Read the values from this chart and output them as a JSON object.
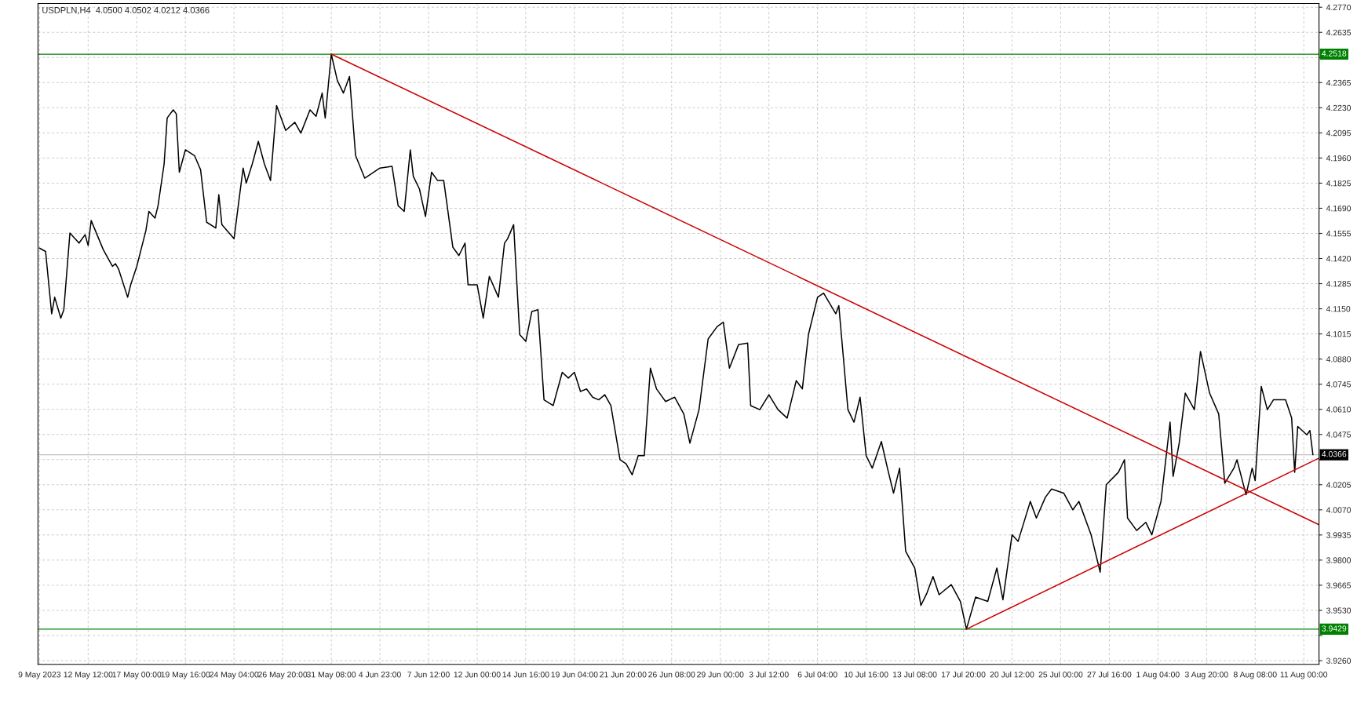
{
  "chart_data": {
    "type": "line",
    "title": "USDPLN,H4  4.0500 4.0502 4.0212 4.0366",
    "categories": [
      "9 May 2023",
      null,
      null,
      null,
      null,
      null,
      null,
      null,
      null,
      null,
      null,
      null,
      null,
      null,
      null,
      null,
      "12 May 12:00",
      null,
      null,
      null,
      null,
      null,
      null,
      null,
      null,
      null,
      null,
      null,
      null,
      null,
      null,
      null,
      "17 May 00:00",
      null,
      null,
      null,
      null,
      null,
      null,
      null,
      null,
      null,
      null,
      null,
      null,
      null,
      null,
      null,
      "19 May 16:00",
      null,
      null,
      null,
      null,
      null,
      null,
      null,
      null,
      null,
      null,
      null,
      null,
      null,
      null,
      null,
      "24 May 04:00",
      null,
      null,
      null,
      null,
      null,
      null,
      null,
      null,
      null,
      null,
      null,
      null,
      null,
      null,
      null,
      "26 May 20:00",
      null,
      null,
      null,
      null,
      null,
      null,
      null,
      null,
      null,
      null,
      null,
      null,
      null,
      null,
      null,
      "31 May 08:00",
      null,
      null,
      null,
      null,
      null,
      null,
      null,
      null,
      null,
      null,
      null,
      null,
      null,
      null,
      null,
      "4 Jun 23:00",
      null,
      null,
      null,
      null,
      null,
      null,
      null,
      null,
      null,
      null,
      null,
      null,
      null,
      null,
      null,
      "7 Jun 12:00",
      null,
      null,
      null,
      null,
      null,
      null,
      null,
      null,
      null,
      null,
      null,
      null,
      null,
      null,
      null,
      "12 Jun 00:00",
      null,
      null,
      null,
      null,
      null,
      null,
      null,
      null,
      null,
      null,
      null,
      null,
      null,
      null,
      null,
      "14 Jun 16:00",
      null,
      null,
      null,
      null,
      null,
      null,
      null,
      null,
      null,
      null,
      null,
      null,
      null,
      null,
      null,
      "19 Jun 04:00",
      null,
      null,
      null,
      null,
      null,
      null,
      null,
      null,
      null,
      null,
      null,
      null,
      null,
      null,
      null,
      "21 Jun 20:00",
      null,
      null,
      null,
      null,
      null,
      null,
      null,
      null,
      null,
      null,
      null,
      null,
      null,
      null,
      null,
      "26 Jun 08:00",
      null,
      null,
      null,
      null,
      null,
      null,
      null,
      null,
      null,
      null,
      null,
      null,
      null,
      null,
      null,
      "29 Jun 00:00",
      null,
      null,
      null,
      null,
      null,
      null,
      null,
      null,
      null,
      null,
      null,
      null,
      null,
      null,
      null,
      "3 Jul 12:00",
      null,
      null,
      null,
      null,
      null,
      null,
      null,
      null,
      null,
      null,
      null,
      null,
      null,
      null,
      null,
      "6 Jul 04:00",
      null,
      null,
      null,
      null,
      null,
      null,
      null,
      null,
      null,
      null,
      null,
      null,
      null,
      null,
      null,
      "10 Jul 16:00",
      null,
      null,
      null,
      null,
      null,
      null,
      null,
      null,
      null,
      null,
      null,
      null,
      null,
      null,
      null,
      "13 Jul 08:00",
      null,
      null,
      null,
      null,
      null,
      null,
      null,
      null,
      null,
      null,
      null,
      null,
      null,
      null,
      null,
      "17 Jul 20:00",
      null,
      null,
      null,
      null,
      null,
      null,
      null,
      null,
      null,
      null,
      null,
      null,
      null,
      null,
      null,
      "20 Jul 12:00",
      null,
      null,
      null,
      null,
      null,
      null,
      null,
      null,
      null,
      null,
      null,
      null,
      null,
      null,
      null,
      "25 Jul 00:00",
      null,
      null,
      null,
      null,
      null,
      null,
      null,
      null,
      null,
      null,
      null,
      null,
      null,
      null,
      null,
      "27 Jul 16:00",
      null,
      null,
      null,
      null,
      null,
      null,
      null,
      null,
      null,
      null,
      null,
      null,
      null,
      null,
      null,
      "1 Aug 04:00",
      null,
      null,
      null,
      null,
      null,
      null,
      null,
      null,
      null,
      null,
      null,
      null,
      null,
      null,
      null,
      "3 Aug 20:00",
      null,
      null,
      null,
      null,
      null,
      null,
      null,
      null,
      null,
      null,
      null,
      null,
      null,
      null,
      null,
      "8 Aug 08:00",
      null,
      null,
      null,
      null,
      null,
      null,
      null,
      null,
      null,
      null,
      null,
      null,
      null,
      null,
      null,
      "11 Aug 00:00",
      null,
      null,
      null,
      null,
      null
    ],
    "ylim": [
      3.924,
      4.279
    ],
    "yticks": [
      {
        "value": 3.926,
        "label": "3.9260"
      },
      {
        "value": 3.9395,
        "label": null
      },
      {
        "value": 3.953,
        "label": "3.9530"
      },
      {
        "value": 3.9665,
        "label": "3.9665"
      },
      {
        "value": 3.98,
        "label": "3.9800"
      },
      {
        "value": 3.9935,
        "label": "3.9935"
      },
      {
        "value": 4.007,
        "label": "4.0070"
      },
      {
        "value": 4.0205,
        "label": "4.0205"
      },
      {
        "value": 4.034,
        "label": null
      },
      {
        "value": 4.0475,
        "label": "4.0475"
      },
      {
        "value": 4.061,
        "label": "4.0610"
      },
      {
        "value": 4.0745,
        "label": "4.0745"
      },
      {
        "value": 4.088,
        "label": "4.0880"
      },
      {
        "value": 4.1015,
        "label": "4.1015"
      },
      {
        "value": 4.115,
        "label": "4.1150"
      },
      {
        "value": 4.1285,
        "label": "4.1285"
      },
      {
        "value": 4.142,
        "label": "4.1420"
      },
      {
        "value": 4.1555,
        "label": "4.1555"
      },
      {
        "value": 4.169,
        "label": "4.1690"
      },
      {
        "value": 4.1825,
        "label": "4.1825"
      },
      {
        "value": 4.196,
        "label": "4.1960"
      },
      {
        "value": 4.2095,
        "label": "4.2095"
      },
      {
        "value": 4.223,
        "label": "4.2230"
      },
      {
        "value": 4.2365,
        "label": "4.2365"
      },
      {
        "value": 4.25,
        "label": null
      },
      {
        "value": 4.2635,
        "label": "4.2635"
      },
      {
        "value": 4.277,
        "label": "4.2770"
      }
    ],
    "grid": true,
    "series": [
      {
        "color": "#000000",
        "values": [
          4.1476,
          null,
          4.1458,
          null,
          4.1123,
          4.1212,
          null,
          4.11,
          4.1145,
          null,
          4.1557,
          null,
          null,
          4.1503,
          null,
          4.1548,
          4.149,
          4.1624,
          null,
          null,
          null,
          4.1467,
          null,
          null,
          4.1378,
          4.1392,
          4.1364,
          null,
          null,
          4.1212,
          4.1279,
          null,
          4.1378,
          null,
          null,
          4.157,
          4.1673,
          null,
          4.1637,
          4.1704,
          null,
          4.1928,
          4.2175,
          null,
          4.2219,
          4.2197,
          4.1884,
          null,
          4.2004,
          null,
          null,
          4.1973,
          null,
          4.1897,
          null,
          4.1615,
          null,
          null,
          4.1584,
          4.1763,
          4.1602,
          null,
          null,
          null,
          4.1526,
          null,
          4.1781,
          4.1906,
          4.1825,
          null,
          4.1928,
          null,
          4.2049,
          null,
          4.1928,
          null,
          4.1839,
          null,
          4.2242,
          null,
          null,
          4.2108,
          null,
          null,
          4.2152,
          null,
          4.2094,
          null,
          null,
          4.2219,
          null,
          4.2184,
          null,
          4.2309,
          4.2175,
          null,
          4.2518,
          null,
          4.2376,
          null,
          4.2309,
          null,
          4.2398,
          null,
          4.1973,
          null,
          null,
          4.1852,
          null,
          null,
          4.1884,
          null,
          4.1906,
          null,
          null,
          null,
          4.1915,
          null,
          4.1704,
          null,
          4.1673,
          null,
          4.2004,
          4.1861,
          null,
          4.1794,
          null,
          4.1646,
          null,
          4.1884,
          null,
          4.1839,
          null,
          4.1839,
          null,
          null,
          4.1481,
          null,
          4.1436,
          null,
          4.1503,
          4.1279,
          null,
          null,
          4.1279,
          null,
          4.11,
          null,
          4.1324,
          null,
          null,
          4.1212,
          null,
          4.1503,
          4.1526,
          null,
          4.1602,
          null,
          4.1011,
          null,
          4.0975,
          null,
          4.1136,
          null,
          4.1145,
          null,
          4.0661,
          null,
          null,
          4.063,
          null,
          null,
          4.0809,
          null,
          4.0778,
          null,
          4.0809,
          null,
          4.0706,
          null,
          4.0719,
          null,
          4.0675,
          null,
          4.0661,
          null,
          4.0688,
          null,
          4.063,
          null,
          null,
          4.0339,
          null,
          4.0317,
          null,
          4.0258,
          null,
          4.0361,
          null,
          4.0361,
          null,
          4.0831,
          null,
          4.072,
          null,
          null,
          4.0652,
          null,
          null,
          4.0675,
          null,
          null,
          4.0585,
          null,
          4.0428,
          null,
          null,
          4.0608,
          null,
          null,
          4.0988,
          null,
          null,
          4.1055,
          null,
          4.1078,
          null,
          4.0831,
          null,
          null,
          4.0957,
          null,
          null,
          4.0966,
          4.063,
          null,
          null,
          4.0608,
          null,
          null,
          4.0688,
          null,
          null,
          4.0608,
          null,
          null,
          4.0563,
          null,
          null,
          4.0764,
          null,
          4.072,
          null,
          4.1011,
          null,
          null,
          4.1212,
          null,
          4.1234,
          null,
          null,
          null,
          4.1123,
          4.1167,
          null,
          null,
          4.0608,
          null,
          4.0541,
          null,
          4.0675,
          null,
          4.0361,
          null,
          4.0294,
          null,
          null,
          4.0437,
          null,
          4.0294,
          null,
          4.016,
          null,
          4.0294,
          null,
          3.9847,
          null,
          null,
          3.9757,
          null,
          3.9556,
          null,
          3.9623,
          null,
          3.9712,
          null,
          3.9614,
          null,
          null,
          null,
          3.9668,
          null,
          null,
          3.9578,
          null,
          3.9429,
          null,
          null,
          3.9601,
          null,
          null,
          null,
          3.9578,
          null,
          null,
          3.9757,
          null,
          3.9587,
          null,
          null,
          3.9936,
          null,
          3.9901,
          null,
          null,
          null,
          4.0115,
          null,
          4.0026,
          null,
          null,
          4.0138,
          null,
          4.0182,
          null,
          null,
          null,
          4.016,
          null,
          null,
          4.007,
          null,
          4.0115,
          null,
          null,
          null,
          3.9936,
          null,
          null,
          3.9735,
          null,
          4.0205,
          null,
          null,
          null,
          4.0272,
          null,
          4.0339,
          4.0026,
          null,
          null,
          3.9959,
          null,
          null,
          4.0003,
          null,
          3.9936,
          null,
          null,
          4.0115,
          null,
          null,
          4.0541,
          4.025,
          null,
          4.0428,
          null,
          4.0697,
          null,
          null,
          4.0608,
          null,
          4.0921,
          null,
          null,
          4.0697,
          null,
          null,
          4.0585,
          null,
          4.0213,
          null,
          null,
          4.0294,
          4.0339,
          null,
          null,
          4.0151,
          null,
          4.0294,
          4.0227,
          null,
          4.0733,
          null,
          4.0608,
          null,
          4.0661,
          null,
          null,
          null,
          4.0661,
          null,
          4.0563,
          4.0272,
          4.0518,
          null,
          null,
          4.0473,
          4.0496,
          4.0366,
          null,
          null
        ]
      },
      {
        "color": "#cc0000",
        "values": [
          null,
          null,
          null,
          null,
          null,
          null,
          null,
          null,
          null,
          null,
          null,
          null,
          null,
          null,
          null,
          null,
          null,
          null,
          null,
          null,
          null,
          null,
          null,
          null,
          null,
          null,
          null,
          null,
          null,
          null,
          null,
          null,
          null,
          null,
          null,
          null,
          null,
          null,
          null,
          null,
          null,
          null,
          null,
          null,
          null,
          null,
          null,
          null,
          null,
          null,
          null,
          null,
          null,
          null,
          null,
          null,
          null,
          null,
          null,
          null,
          null,
          null,
          null,
          null,
          null,
          null,
          null,
          null,
          null,
          null,
          null,
          null,
          null,
          null,
          null,
          null,
          null,
          null,
          null,
          null,
          null,
          null,
          null,
          null,
          null,
          null,
          null,
          null,
          null,
          null,
          null,
          null,
          null,
          null,
          null,
          null,
          4.2518,
          null,
          null,
          null,
          null,
          null,
          null,
          null,
          null,
          null,
          null,
          null,
          null,
          null,
          null,
          null,
          null,
          null,
          null,
          null,
          null,
          null,
          null,
          null,
          null,
          null,
          null,
          null,
          null,
          null,
          null,
          null,
          null,
          null,
          null,
          null,
          null,
          null,
          null,
          null,
          null,
          null,
          null,
          null,
          null,
          null,
          null,
          null,
          null,
          null,
          null,
          null,
          null,
          null,
          null,
          null,
          null,
          null,
          null,
          null,
          null,
          null,
          null,
          null,
          null,
          null,
          null,
          null,
          null,
          null,
          null,
          null,
          null,
          null,
          null,
          null,
          null,
          null,
          null,
          null,
          null,
          null,
          null,
          null,
          null,
          null,
          null,
          null,
          null,
          null,
          null,
          null,
          null,
          null,
          null,
          null,
          null,
          null,
          null,
          null,
          null,
          null,
          null,
          null,
          null,
          null,
          null,
          null,
          null,
          null,
          null,
          null,
          null,
          null,
          null,
          null,
          null,
          null,
          null,
          null,
          null,
          null,
          null,
          null,
          null,
          null,
          null,
          null,
          null,
          null,
          null,
          null,
          null,
          null,
          null,
          null,
          null,
          null,
          null,
          null,
          null,
          null,
          null,
          null,
          null,
          null,
          null,
          null,
          null,
          null,
          null,
          null,
          null,
          null,
          null,
          null,
          null,
          null,
          null,
          null,
          null,
          null,
          null,
          null,
          null,
          null,
          null,
          null,
          null,
          null,
          null,
          null,
          null,
          null,
          null,
          null,
          null,
          null,
          null,
          null,
          null,
          null,
          null,
          null,
          null,
          null,
          null,
          null,
          null,
          null,
          null,
          null,
          null,
          null,
          null,
          null,
          null,
          null,
          null,
          null,
          null,
          null,
          null,
          null,
          null,
          null,
          null,
          null,
          null,
          null,
          null,
          null,
          null,
          null,
          null,
          null,
          null,
          null,
          null,
          null,
          null,
          null,
          null,
          null,
          null,
          null,
          null,
          null,
          null,
          null,
          null,
          null,
          null,
          null,
          null,
          null,
          null,
          null,
          null,
          null,
          null,
          null,
          null,
          null,
          null,
          null,
          null,
          null,
          null,
          null,
          null,
          null,
          null,
          null,
          null,
          null,
          null,
          null,
          null,
          null,
          null,
          null,
          null,
          null,
          null,
          null,
          null,
          null,
          null,
          null,
          null,
          null,
          null,
          null,
          null,
          null,
          null,
          null,
          null,
          null,
          null,
          null,
          null,
          null,
          null,
          null,
          null,
          null,
          null,
          null,
          null,
          null,
          null,
          null,
          null,
          null,
          null,
          null,
          null,
          null,
          null,
          null,
          null,
          null,
          null,
          null,
          null,
          null,
          null,
          null,
          null,
          null,
          null,
          null,
          null,
          null,
          null,
          null,
          null,
          null,
          null,
          null,
          null,
          null,
          null,
          3.999
        ]
      },
      {
        "color": "#cc0000",
        "values": [
          null,
          null,
          null,
          null,
          null,
          null,
          null,
          null,
          null,
          null,
          null,
          null,
          null,
          null,
          null,
          null,
          null,
          null,
          null,
          null,
          null,
          null,
          null,
          null,
          null,
          null,
          null,
          null,
          null,
          null,
          null,
          null,
          null,
          null,
          null,
          null,
          null,
          null,
          null,
          null,
          null,
          null,
          null,
          null,
          null,
          null,
          null,
          null,
          null,
          null,
          null,
          null,
          null,
          null,
          null,
          null,
          null,
          null,
          null,
          null,
          null,
          null,
          null,
          null,
          null,
          null,
          null,
          null,
          null,
          null,
          null,
          null,
          null,
          null,
          null,
          null,
          null,
          null,
          null,
          null,
          null,
          null,
          null,
          null,
          null,
          null,
          null,
          null,
          null,
          null,
          null,
          null,
          null,
          null,
          null,
          null,
          null,
          null,
          null,
          null,
          null,
          null,
          null,
          null,
          null,
          null,
          null,
          null,
          null,
          null,
          null,
          null,
          null,
          null,
          null,
          null,
          null,
          null,
          null,
          null,
          null,
          null,
          null,
          null,
          null,
          null,
          null,
          null,
          null,
          null,
          null,
          null,
          null,
          null,
          null,
          null,
          null,
          null,
          null,
          null,
          null,
          null,
          null,
          null,
          null,
          null,
          null,
          null,
          null,
          null,
          null,
          null,
          null,
          null,
          null,
          null,
          null,
          null,
          null,
          null,
          null,
          null,
          null,
          null,
          null,
          null,
          null,
          null,
          null,
          null,
          null,
          null,
          null,
          null,
          null,
          null,
          null,
          null,
          null,
          null,
          null,
          null,
          null,
          null,
          null,
          null,
          null,
          null,
          null,
          null,
          null,
          null,
          null,
          null,
          null,
          null,
          null,
          null,
          null,
          null,
          null,
          null,
          null,
          null,
          null,
          null,
          null,
          null,
          null,
          null,
          null,
          null,
          null,
          null,
          null,
          null,
          null,
          null,
          null,
          null,
          null,
          null,
          null,
          null,
          null,
          null,
          null,
          null,
          null,
          null,
          null,
          null,
          null,
          null,
          null,
          null,
          null,
          null,
          null,
          null,
          null,
          null,
          null,
          null,
          null,
          null,
          null,
          null,
          null,
          null,
          null,
          null,
          null,
          null,
          null,
          null,
          null,
          null,
          null,
          null,
          null,
          null,
          null,
          null,
          null,
          null,
          null,
          null,
          null,
          null,
          null,
          null,
          null,
          null,
          null,
          null,
          null,
          null,
          null,
          null,
          null,
          null,
          null,
          null,
          null,
          null,
          null,
          null,
          null,
          null,
          null,
          null,
          null,
          null,
          null,
          null,
          null,
          null,
          null,
          null,
          null,
          null,
          null,
          null,
          null,
          3.9429,
          null,
          null,
          null,
          null,
          null,
          null,
          null,
          null,
          null,
          null,
          null,
          null,
          null,
          null,
          null,
          null,
          null,
          null,
          null,
          null,
          null,
          null,
          null,
          null,
          null,
          null,
          null,
          null,
          null,
          null,
          null,
          null,
          null,
          null,
          null,
          null,
          null,
          null,
          null,
          null,
          null,
          null,
          null,
          null,
          null,
          null,
          null,
          null,
          null,
          null,
          null,
          null,
          null,
          null,
          null,
          null,
          null,
          null,
          null,
          null,
          null,
          null,
          null,
          null,
          null,
          null,
          null,
          null,
          null,
          null,
          null,
          null,
          null,
          null,
          null,
          null,
          null,
          null,
          null,
          null,
          null,
          null,
          null,
          null,
          null,
          null,
          null,
          null,
          null,
          null,
          null,
          null,
          null,
          null,
          null,
          null,
          null,
          null,
          null,
          null,
          null,
          null,
          null,
          null,
          null,
          null,
          null,
          null,
          null,
          null,
          null,
          null,
          null,
          null,
          null,
          4.0348
        ]
      }
    ],
    "ref_lines": [
      {
        "axis": "y",
        "value": 4.2518,
        "label": "4.2518",
        "color": "#008000"
      },
      {
        "axis": "y",
        "value": 3.9429,
        "label": "3.9429",
        "color": "#008000"
      },
      {
        "axis": "y",
        "value": 4.0366,
        "label": "4.0366",
        "color": "#c0c0c0"
      }
    ]
  }
}
